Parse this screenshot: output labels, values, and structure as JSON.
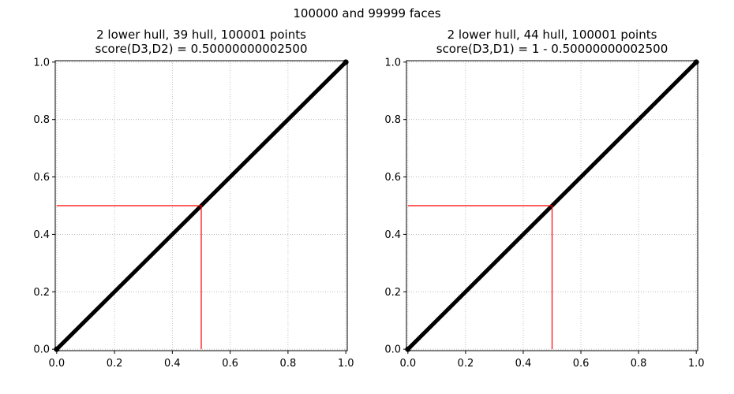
{
  "figure": {
    "suptitle": "100000 and 99999 faces"
  },
  "chart_data": [
    {
      "type": "line",
      "title": [
        "2 lower hull, 39 hull, 100001 points",
        "score(D3,D2) = 0.50000000002500"
      ],
      "xlabel": "",
      "ylabel": "",
      "xlim": [
        -0.005,
        1.005
      ],
      "ylim": [
        -0.005,
        1.005
      ],
      "xticks": [
        0.0,
        0.2,
        0.4,
        0.6,
        0.8,
        1.0
      ],
      "xtick_labels": [
        "0.0",
        "0.2",
        "0.4",
        "0.6",
        "0.8",
        "1.0"
      ],
      "yticks": [
        0.0,
        0.2,
        0.4,
        0.6,
        0.8,
        1.0
      ],
      "ytick_labels": [
        "0.0",
        "0.2",
        "0.4",
        "0.6",
        "0.8",
        "1.0"
      ],
      "grid": true,
      "series": [
        {
          "kind": "line",
          "color": "#000000",
          "x": [
            0.0,
            1.0
          ],
          "y": [
            0.0,
            1.0
          ],
          "markers": true
        },
        {
          "kind": "guide",
          "color": "#ff0000",
          "x": [
            0.0,
            0.5,
            0.5
          ],
          "y": [
            0.5,
            0.5,
            0.0
          ]
        }
      ]
    },
    {
      "type": "line",
      "title": [
        "2 lower hull, 44 hull, 100001 points",
        "score(D3,D1) = 1 - 0.50000000002500"
      ],
      "xlabel": "",
      "ylabel": "",
      "xlim": [
        -0.005,
        1.005
      ],
      "ylim": [
        -0.005,
        1.005
      ],
      "xticks": [
        0.0,
        0.2,
        0.4,
        0.6,
        0.8,
        1.0
      ],
      "xtick_labels": [
        "0.0",
        "0.2",
        "0.4",
        "0.6",
        "0.8",
        "1.0"
      ],
      "yticks": [
        0.0,
        0.2,
        0.4,
        0.6,
        0.8,
        1.0
      ],
      "ytick_labels": [
        "0.0",
        "0.2",
        "0.4",
        "0.6",
        "0.8",
        "1.0"
      ],
      "grid": true,
      "series": [
        {
          "kind": "line",
          "color": "#000000",
          "x": [
            0.0,
            1.0
          ],
          "y": [
            0.0,
            1.0
          ],
          "markers": true
        },
        {
          "kind": "guide",
          "color": "#ff0000",
          "x": [
            0.0,
            0.5,
            0.5
          ],
          "y": [
            0.5,
            0.5,
            0.0
          ]
        }
      ]
    }
  ]
}
